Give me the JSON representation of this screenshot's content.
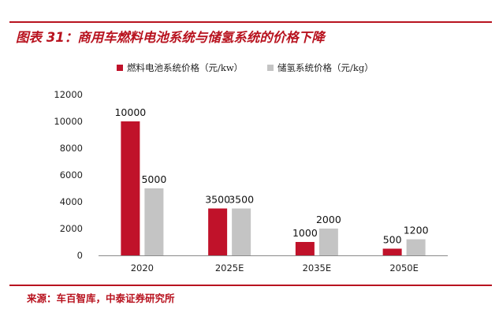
{
  "figure": {
    "title": "图表 31：商用车燃料电池系统与储氢系统的价格下降",
    "source": "来源：车百智库，中泰证券研究所"
  },
  "chart_data": {
    "type": "bar",
    "categories": [
      "2020",
      "2025E",
      "2035E",
      "2050E"
    ],
    "series": [
      {
        "name": "燃料电池系统价格（元/kw）",
        "values": [
          10000,
          3500,
          1000,
          500
        ],
        "color": "#c0122a"
      },
      {
        "name": "储氢系统价格（元/kg）",
        "values": [
          5000,
          3500,
          2000,
          1200
        ],
        "color": "#c4c4c4"
      }
    ],
    "yticks": [
      0,
      2000,
      4000,
      6000,
      8000,
      10000,
      12000
    ],
    "ylim": [
      0,
      12000
    ],
    "legend": "top-left",
    "grid": false
  }
}
